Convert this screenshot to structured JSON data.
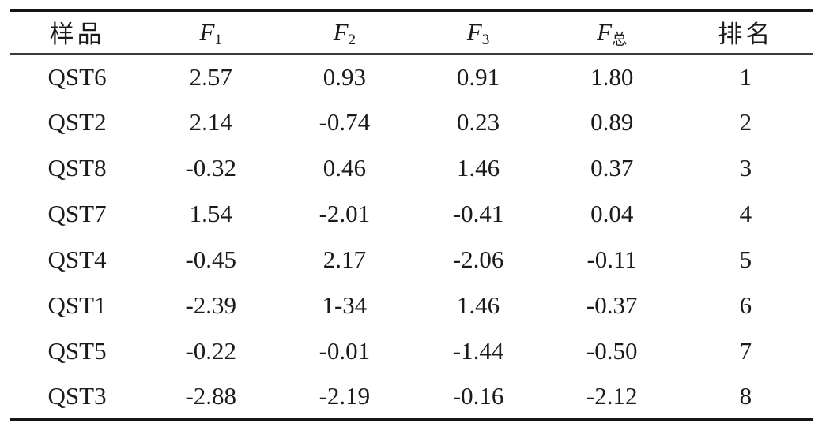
{
  "colors": {
    "background": "#ffffff",
    "text": "#1b1b1b",
    "rule_heavy": "#161616",
    "rule_light": "#3a3a3a"
  },
  "table": {
    "columns": [
      {
        "id": "sample",
        "label": "样品",
        "sub": null,
        "italic": false
      },
      {
        "id": "f1",
        "label": "F",
        "sub": "1",
        "italic": true
      },
      {
        "id": "f2",
        "label": "F",
        "sub": "2",
        "italic": true
      },
      {
        "id": "f3",
        "label": "F",
        "sub": "3",
        "italic": true
      },
      {
        "id": "f-total",
        "label": "F",
        "sub": "总",
        "italic": true
      },
      {
        "id": "rank",
        "label": "排名",
        "sub": null,
        "italic": false
      }
    ],
    "rows": [
      {
        "sample": "QST6",
        "f1": "2.57",
        "f2": "0.93",
        "f3": "0.91",
        "f_total": "1.80",
        "rank": "1"
      },
      {
        "sample": "QST2",
        "f1": "2.14",
        "f2": "-0.74",
        "f3": "0.23",
        "f_total": "0.89",
        "rank": "2"
      },
      {
        "sample": "QST8",
        "f1": "-0.32",
        "f2": "0.46",
        "f3": "1.46",
        "f_total": "0.37",
        "rank": "3"
      },
      {
        "sample": "QST7",
        "f1": "1.54",
        "f2": "-2.01",
        "f3": "-0.41",
        "f_total": "0.04",
        "rank": "4"
      },
      {
        "sample": "QST4",
        "f1": "-0.45",
        "f2": "2.17",
        "f3": "-2.06",
        "f_total": "-0.11",
        "rank": "5"
      },
      {
        "sample": "QST1",
        "f1": "-2.39",
        "f2": "1-34",
        "f3": "1.46",
        "f_total": "-0.37",
        "rank": "6"
      },
      {
        "sample": "QST5",
        "f1": "-0.22",
        "f2": "-0.01",
        "f3": "-1.44",
        "f_total": "-0.50",
        "rank": "7"
      },
      {
        "sample": "QST3",
        "f1": "-2.88",
        "f2": "-2.19",
        "f3": "-0.16",
        "f_total": "-2.12",
        "rank": "8"
      }
    ]
  },
  "chart_data": {
    "type": "table",
    "title": "",
    "columns": [
      "样品",
      "F1",
      "F2",
      "F3",
      "F总",
      "排名"
    ],
    "rows": [
      [
        "QST6",
        "2.57",
        "0.93",
        "0.91",
        "1.80",
        "1"
      ],
      [
        "QST2",
        "2.14",
        "-0.74",
        "0.23",
        "0.89",
        "2"
      ],
      [
        "QST8",
        "-0.32",
        "0.46",
        "1.46",
        "0.37",
        "3"
      ],
      [
        "QST7",
        "1.54",
        "-2.01",
        "-0.41",
        "0.04",
        "4"
      ],
      [
        "QST4",
        "-0.45",
        "2.17",
        "-2.06",
        "-0.11",
        "5"
      ],
      [
        "QST1",
        "-2.39",
        "1-34",
        "1.46",
        "-0.37",
        "6"
      ],
      [
        "QST5",
        "-0.22",
        "-0.01",
        "-1.44",
        "-0.50",
        "7"
      ],
      [
        "QST3",
        "-2.88",
        "-2.19",
        "-0.16",
        "-2.12",
        "8"
      ]
    ]
  }
}
